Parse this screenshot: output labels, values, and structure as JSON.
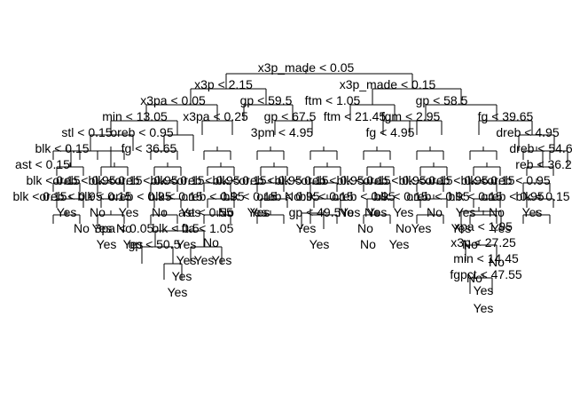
{
  "colors": {
    "ink": "#000000",
    "background": "#ffffff"
  },
  "tree": {
    "root": "x3p_made < 0.05",
    "level1": [
      "x3p < 2.15",
      "x3p_made < 0.15"
    ],
    "level2": [
      "x3pa < 0.05",
      "gp < 59.5",
      "ftm < 1.05",
      "gp < 58.5"
    ],
    "level3": [
      "min < 13.05",
      "x3pa < 0.25",
      "gp < 67.5",
      "ftm < 21.45",
      "fgm < 2.95",
      "fg < 39.65"
    ],
    "level4": [
      "stl < 0.15",
      "oreb < 0.95",
      "3pm < 4.95",
      "fg < 4.95",
      "dreb < 4.95"
    ],
    "level5": [
      "blk < 0.15",
      "fg < 36.65",
      "dreb < 54.6"
    ],
    "level6": [
      "ast < 0.15",
      "reb < 36.2"
    ],
    "deep_lower_left": [
      "blk < 0.5",
      "gp < 50.5",
      "3pa < 0.05",
      "ast < 0.55",
      "fta < 1.05"
    ],
    "deep_center": [
      "gp < 49.5"
    ],
    "deep_right": [
      "xpa < 1.95",
      "x3p < 27.25",
      "min < 14.45",
      "fgpct < 47.55"
    ],
    "leaf_yes": "Yes",
    "leaf_no": "No"
  }
}
